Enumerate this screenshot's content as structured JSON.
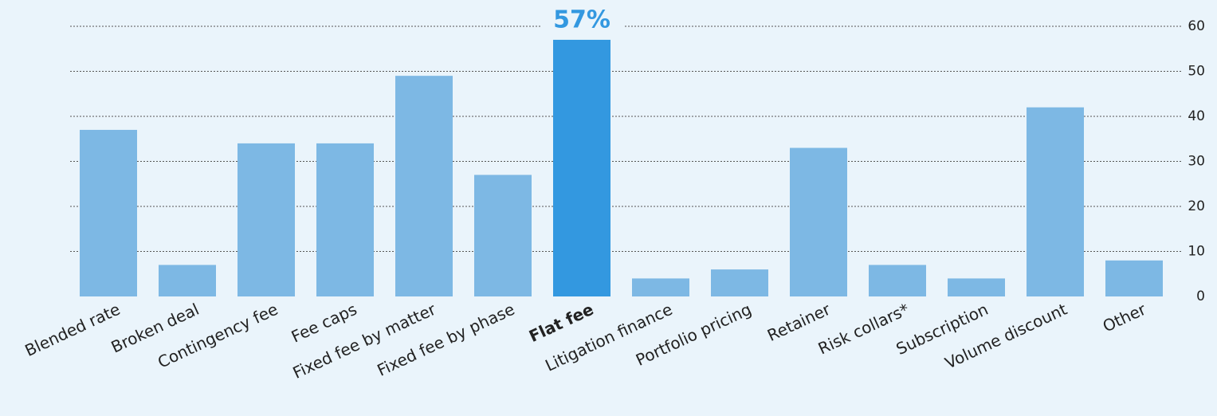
{
  "chart_data": {
    "type": "bar",
    "categories": [
      "Blended rate",
      "Broken deal",
      "Contingency fee",
      "Fee caps",
      "Fixed fee by matter",
      "Fixed fee by phase",
      "Flat fee",
      "Litigation finance",
      "Portfolio pricing",
      "Retainer",
      "Risk collars*",
      "Subscription",
      "Volume discount",
      "Other"
    ],
    "values": [
      37,
      7,
      34,
      34,
      49,
      27,
      57,
      4,
      6,
      33,
      7,
      4,
      42,
      8
    ],
    "value_labels": [
      null,
      null,
      null,
      null,
      null,
      null,
      "57%",
      null,
      null,
      null,
      null,
      null,
      null,
      null
    ],
    "color": "#7db8e4",
    "highlight_color": "#3398e0",
    "highlight": "Flat fee",
    "ylim": [
      0,
      60
    ],
    "yticks": [
      0,
      10,
      20,
      30,
      40,
      50,
      60
    ],
    "grid": true
  }
}
